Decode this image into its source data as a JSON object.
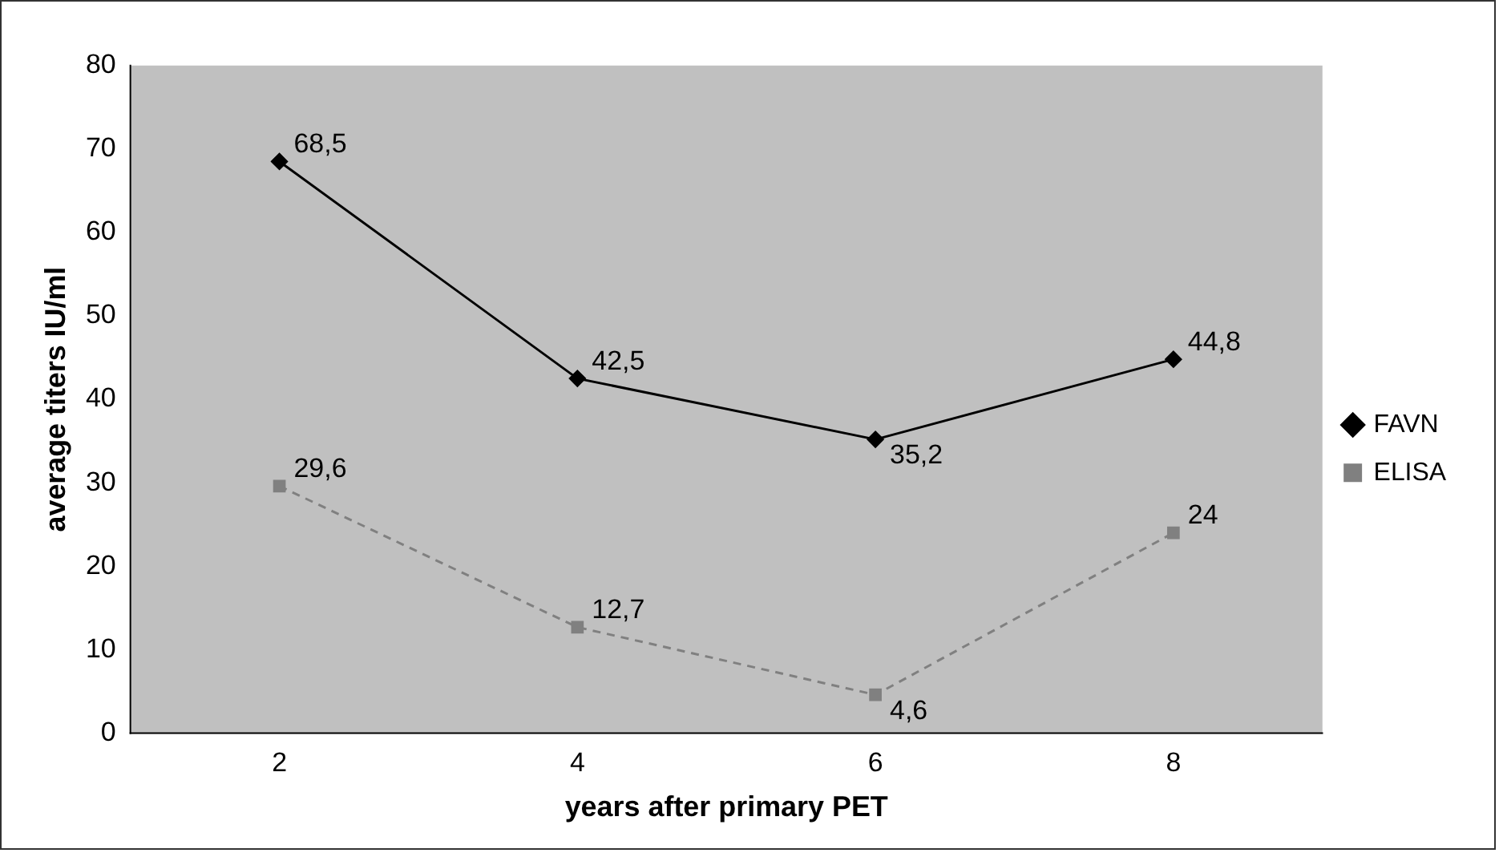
{
  "chart_data": {
    "type": "line",
    "xlabel": "years after primary PET",
    "ylabel": "average titers IU/ml",
    "categories": [
      "2",
      "4",
      "6",
      "8"
    ],
    "series": [
      {
        "name": "FAVN",
        "color": "#000000",
        "values": [
          68.5,
          42.5,
          35.2,
          44.8
        ],
        "value_labels": [
          "68,5",
          "42,5",
          "35,2",
          "44,8"
        ],
        "marker": "diamond",
        "line_style": "solid"
      },
      {
        "name": "ELISA",
        "color": "#808080",
        "values": [
          29.6,
          12.7,
          4.6,
          24
        ],
        "value_labels": [
          "29,6",
          "12,7",
          "4,6",
          "24"
        ],
        "marker": "square",
        "line_style": "dashed"
      }
    ],
    "ylim": [
      0,
      80
    ],
    "yticks": [
      0,
      10,
      20,
      30,
      40,
      50,
      60,
      70,
      80
    ],
    "grid": false,
    "legend": "right"
  }
}
